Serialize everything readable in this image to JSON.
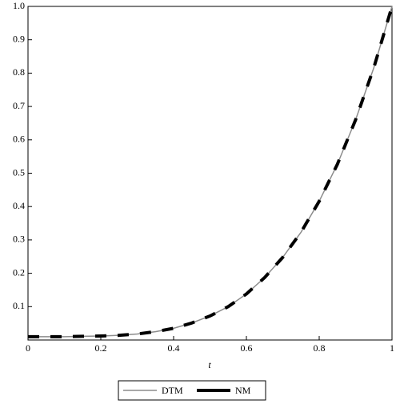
{
  "chart_data": {
    "type": "line",
    "x_label": "t",
    "x": [
      0,
      0.05,
      0.1,
      0.15,
      0.2,
      0.25,
      0.3,
      0.35,
      0.4,
      0.45,
      0.5,
      0.55,
      0.6,
      0.65,
      0.7,
      0.75,
      0.8,
      0.85,
      0.9,
      0.95,
      1
    ],
    "series": [
      {
        "name": "DTM",
        "color": "#8c8c8c",
        "dashed": false,
        "values": [
          0.01,
          0.01,
          0.01,
          0.011,
          0.012,
          0.014,
          0.018,
          0.025,
          0.035,
          0.051,
          0.072,
          0.1,
          0.138,
          0.187,
          0.248,
          0.323,
          0.416,
          0.527,
          0.66,
          0.816,
          1.0
        ]
      },
      {
        "name": "NM",
        "color": "#000000",
        "dashed": true,
        "values": [
          0.01,
          0.01,
          0.01,
          0.011,
          0.012,
          0.014,
          0.018,
          0.025,
          0.035,
          0.051,
          0.072,
          0.1,
          0.138,
          0.187,
          0.248,
          0.323,
          0.416,
          0.527,
          0.66,
          0.816,
          1.0
        ]
      }
    ],
    "xlim": [
      0,
      1
    ],
    "xticks": [
      0,
      0.2,
      0.4,
      0.6,
      0.8,
      1
    ],
    "ylim": [
      0,
      1
    ],
    "yticks": [
      0.1,
      0.2,
      0.3,
      0.4,
      0.5,
      0.6,
      0.7,
      0.8,
      0.9,
      {
        "value": 1,
        "label": "1.0"
      }
    ],
    "legend": "bottom"
  }
}
